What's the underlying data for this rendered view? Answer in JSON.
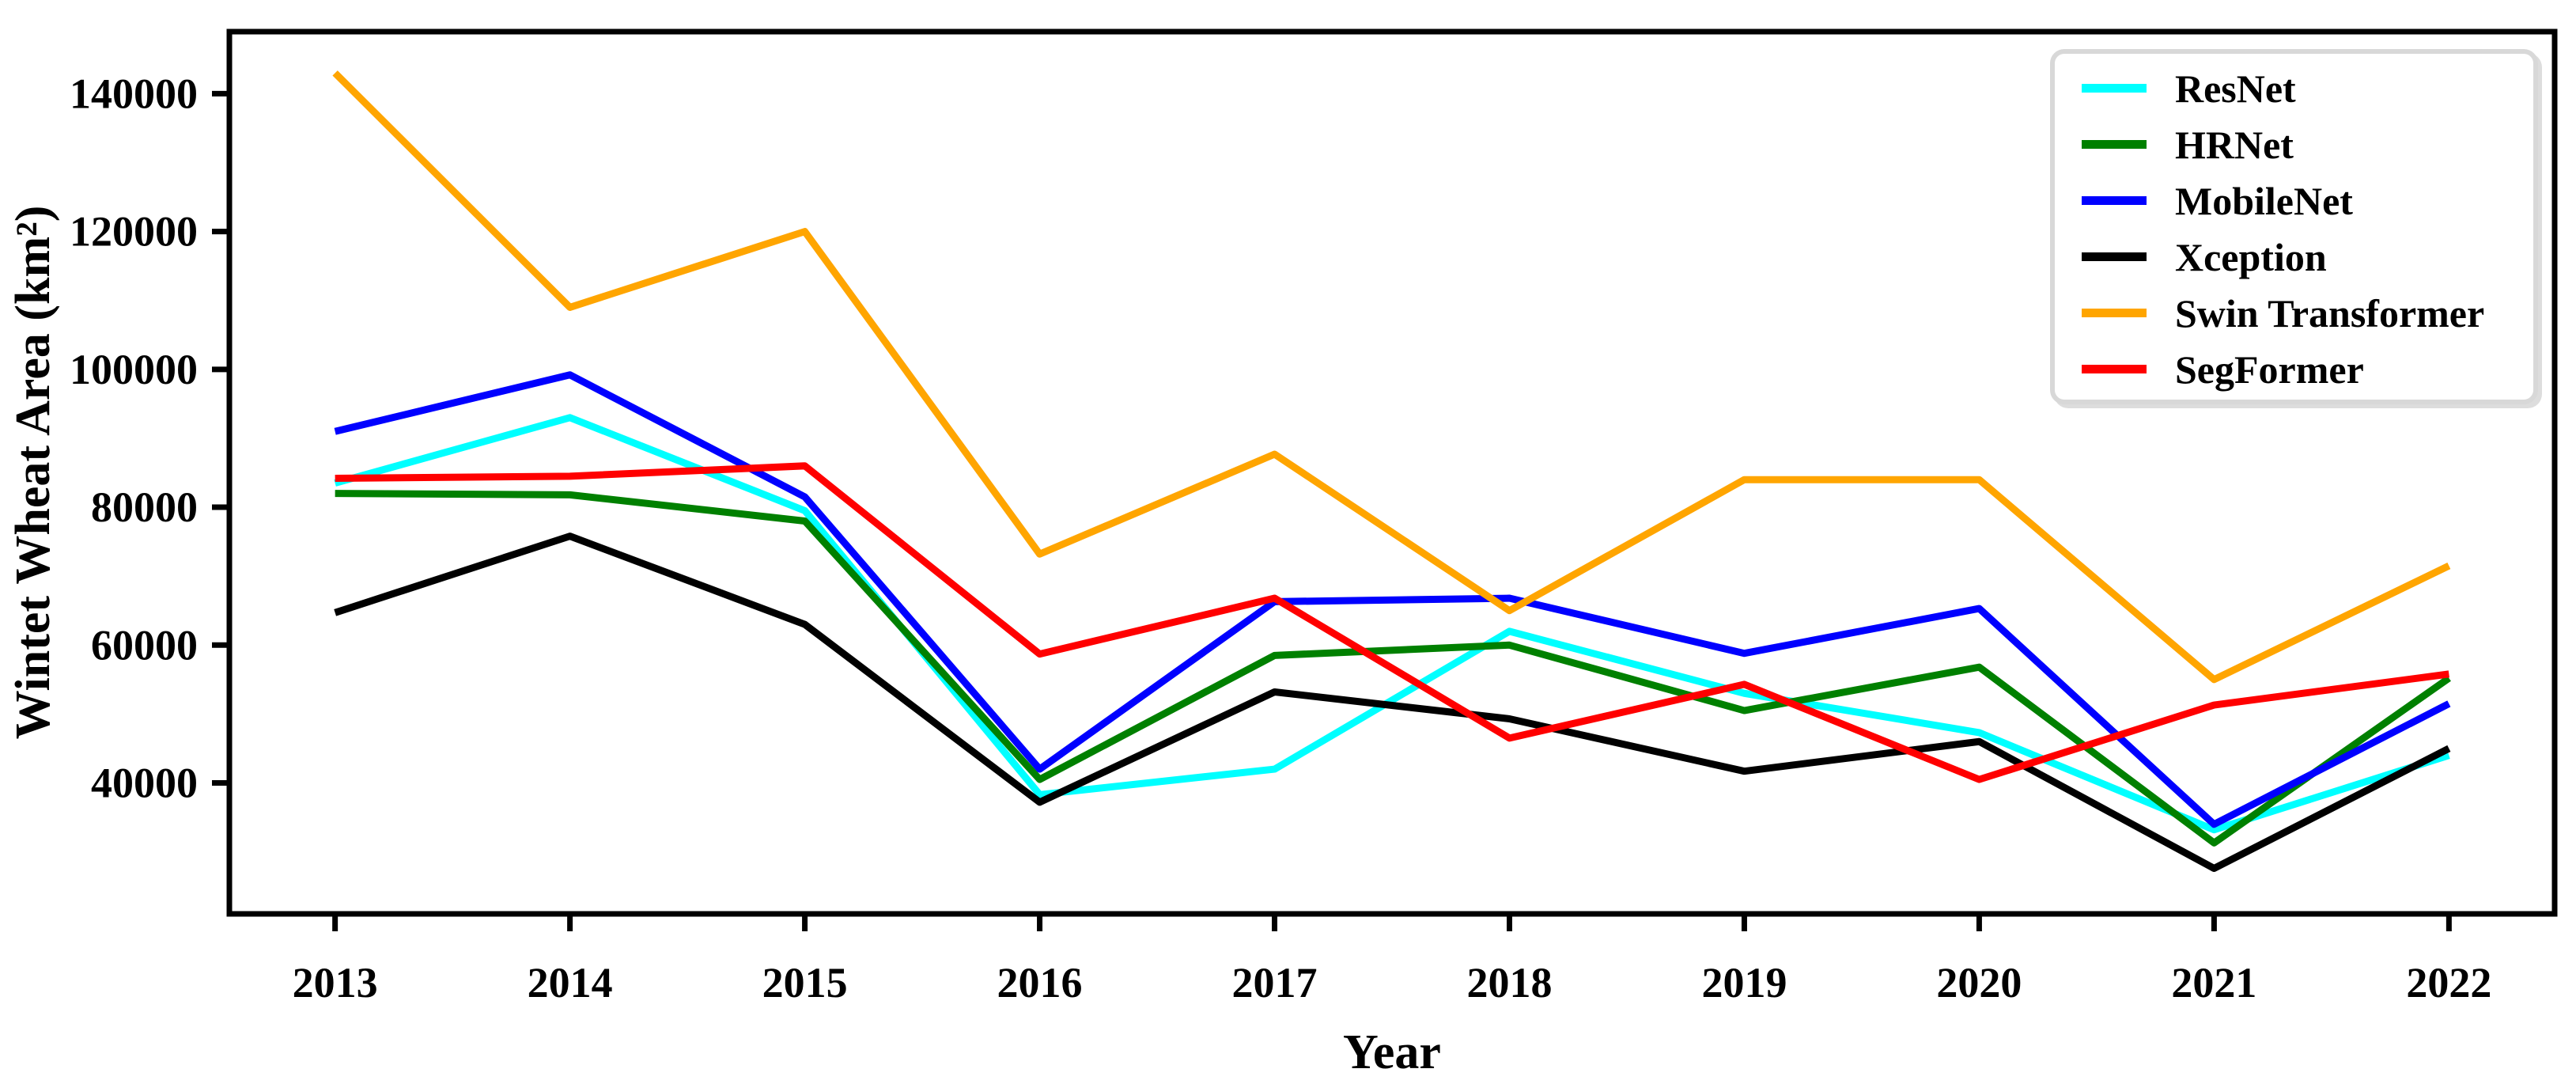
{
  "figure": {
    "background_color": "#ffffff",
    "frame_color": "#000000"
  },
  "chart_data": {
    "type": "line",
    "title": "",
    "xlabel": "Year",
    "ylabel": "Wintet Wheat Area (km²)",
    "x": [
      2013,
      2014,
      2015,
      2016,
      2017,
      2018,
      2019,
      2020,
      2021,
      2022
    ],
    "xticks": [
      2013,
      2014,
      2015,
      2016,
      2017,
      2018,
      2019,
      2020,
      2021,
      2022
    ],
    "yticks": [
      40000,
      60000,
      80000,
      100000,
      120000,
      140000
    ],
    "xlim": [
      2012.55,
      2022.45
    ],
    "ylim": [
      21000,
      149000
    ],
    "grid": false,
    "legend_position": "upper right",
    "series": [
      {
        "name": "ResNet",
        "color": "#00FFFF",
        "values": [
          83500,
          93000,
          79500,
          38300,
          42000,
          62000,
          53000,
          47300,
          33200,
          44000
        ]
      },
      {
        "name": "HRNet",
        "color": "#008000",
        "values": [
          82000,
          81800,
          78000,
          40500,
          58500,
          60000,
          50500,
          56800,
          31300,
          55200
        ]
      },
      {
        "name": "MobileNet",
        "color": "#0000FF",
        "values": [
          91000,
          99200,
          81500,
          42000,
          66300,
          66800,
          58800,
          65300,
          34000,
          51500
        ]
      },
      {
        "name": "Xception",
        "color": "#000000",
        "values": [
          64700,
          75800,
          63000,
          37200,
          53200,
          49300,
          41700,
          46000,
          27600,
          45000
        ]
      },
      {
        "name": "Swin Transformer",
        "color": "#FFA500",
        "values": [
          143000,
          109000,
          120000,
          73200,
          87700,
          65000,
          84000,
          84000,
          55000,
          71500
        ]
      },
      {
        "name": "SegFormer",
        "color": "#FF0000",
        "values": [
          84200,
          84500,
          86000,
          58700,
          66800,
          46500,
          54300,
          40500,
          51300,
          55800
        ]
      }
    ]
  }
}
